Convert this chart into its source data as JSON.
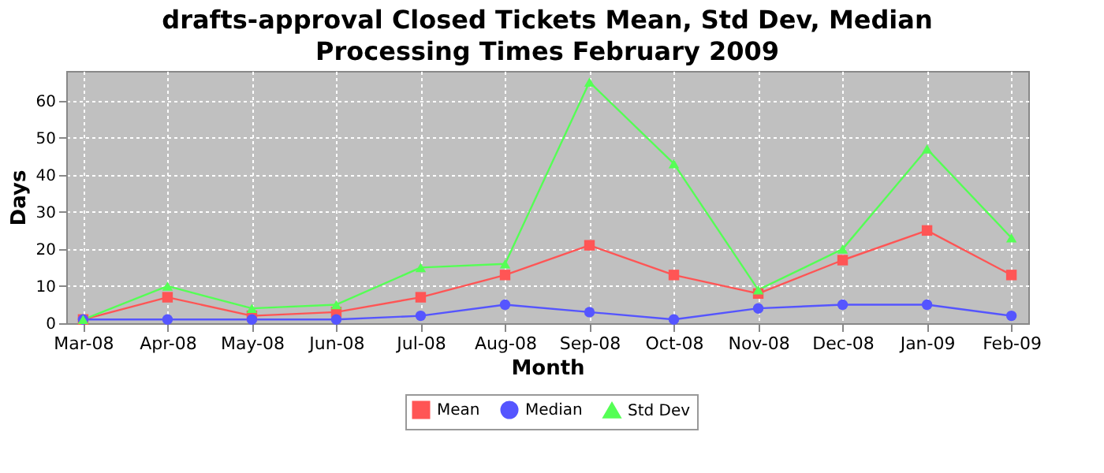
{
  "chart_data": {
    "type": "line",
    "title": "drafts-approval Closed Tickets Mean, Std Dev, Median Processing Times February 2009",
    "xlabel": "Month",
    "ylabel": "Days",
    "categories": [
      "Mar-08",
      "Apr-08",
      "May-08",
      "Jun-08",
      "Jul-08",
      "Aug-08",
      "Sep-08",
      "Oct-08",
      "Nov-08",
      "Dec-08",
      "Jan-09",
      "Feb-09"
    ],
    "series": [
      {
        "name": "Mean",
        "color": "#ff5555",
        "marker": "square",
        "values": [
          1,
          7,
          2,
          3,
          7,
          13,
          21,
          13,
          8,
          17,
          25,
          13
        ]
      },
      {
        "name": "Median",
        "color": "#5555ff",
        "marker": "circle",
        "values": [
          1,
          1,
          1,
          1,
          2,
          5,
          3,
          1,
          4,
          5,
          5,
          2
        ]
      },
      {
        "name": "Std Dev",
        "color": "#55ff55",
        "marker": "triangle",
        "values": [
          1,
          10,
          4,
          5,
          15,
          16,
          65,
          43,
          9,
          20,
          47,
          23
        ]
      }
    ],
    "ylim": [
      0,
      68
    ],
    "yticks": [
      0,
      10,
      20,
      30,
      40,
      50,
      60
    ],
    "grid": true,
    "legend": "bottom"
  }
}
